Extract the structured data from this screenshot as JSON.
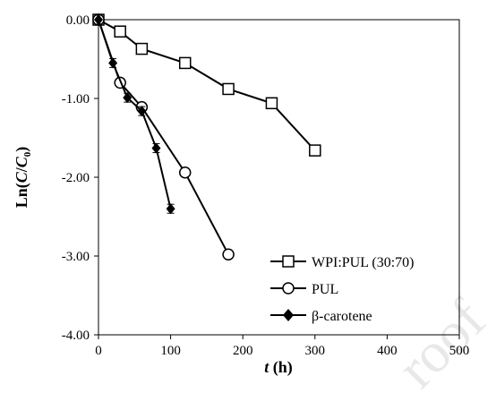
{
  "watermark": "roof",
  "chart_data": {
    "type": "line",
    "xlabel_italic": "t",
    "xlabel_rest": " (h)",
    "ylabel_prefix": "Ln(",
    "ylabel_C": "C",
    "ylabel_slash": "/",
    "ylabel_C0": "C",
    "ylabel_sub": "0",
    "ylabel_suffix": ")",
    "xlim": [
      0,
      500
    ],
    "ylim": [
      -4.0,
      0.0
    ],
    "xticks": [
      0,
      100,
      200,
      300,
      400,
      500
    ],
    "xtick_labels": [
      "0",
      "100",
      "200",
      "300",
      "400",
      "500"
    ],
    "yticks": [
      0.0,
      -1.0,
      -2.0,
      -3.0,
      -4.0
    ],
    "ytick_labels": [
      "0.00",
      "-1.00",
      "-2.00",
      "-3.00",
      "-4.00"
    ],
    "grid": false,
    "legend_position": "bottom-right",
    "series": [
      {
        "name": "WPI:PUL (30:70)",
        "marker": "square-open",
        "x": [
          0,
          30,
          60,
          120,
          180,
          240,
          300
        ],
        "y": [
          0.0,
          -0.15,
          -0.37,
          -0.55,
          -0.88,
          -1.06,
          -1.66
        ]
      },
      {
        "name": "PUL",
        "marker": "circle-open",
        "x": [
          0,
          30,
          60,
          120,
          180
        ],
        "y": [
          0.0,
          -0.8,
          -1.11,
          -1.94,
          -2.98
        ]
      },
      {
        "name": "β-carotene",
        "marker": "diamond-filled",
        "x": [
          0,
          20,
          40,
          60,
          80,
          100
        ],
        "y": [
          0.0,
          -0.55,
          -0.99,
          -1.16,
          -1.63,
          -2.4
        ]
      }
    ]
  }
}
